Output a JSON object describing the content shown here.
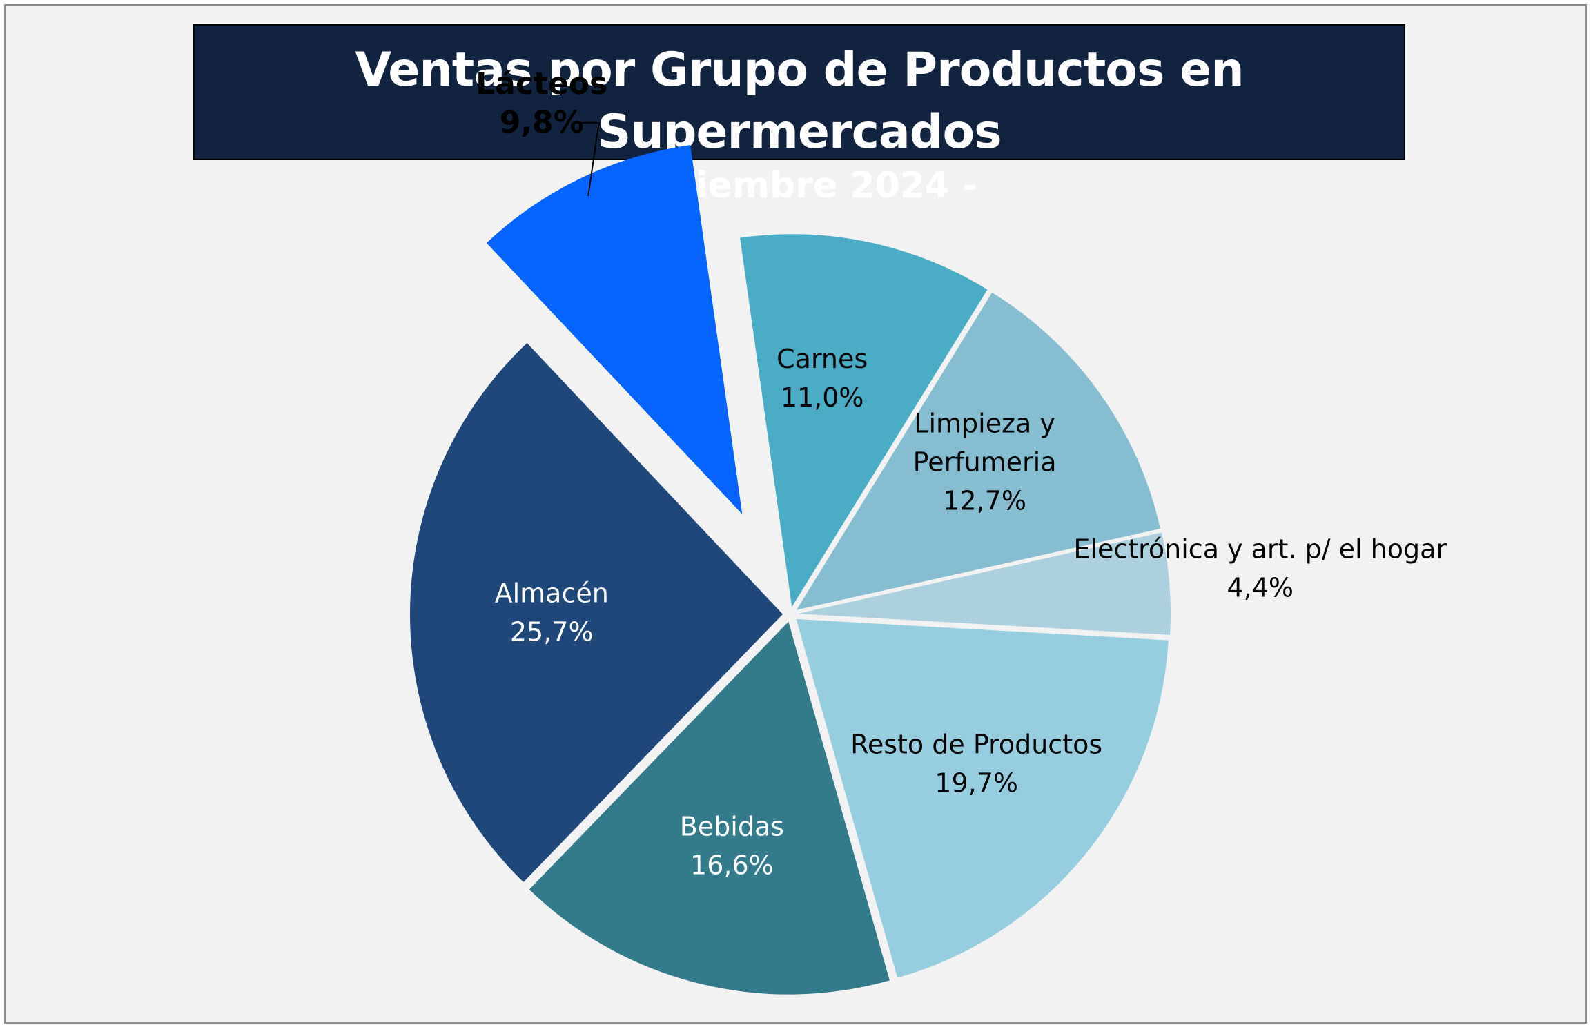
{
  "chart_data": {
    "type": "pie",
    "title": "Ventas por Grupo de Productos en Supermercados",
    "subtitle": "-diciembre 2024 -",
    "slices": [
      {
        "name": "Carnes",
        "value": 11.0,
        "label": "11,0%",
        "color": "#4bacc6",
        "text_color": "#000000"
      },
      {
        "name": "Limpieza y Perfumeria",
        "label_lines": [
          "Limpieza y",
          "Perfumeria"
        ],
        "value": 12.7,
        "label": "12,7%",
        "color": "#86bdd1",
        "text_color": "#000000"
      },
      {
        "name": "Electrónica y art. p/ el hogar",
        "value": 4.4,
        "label": "4,4%",
        "color": "#acd0de",
        "text_color": "#000000"
      },
      {
        "name": "Resto de Productos",
        "value": 19.7,
        "label": "19,7%",
        "color": "#96cddf",
        "text_color": "#000000"
      },
      {
        "name": "Bebidas",
        "value": 16.6,
        "label": "16,6%",
        "color": "#337a8b",
        "text_color": "#ffffff"
      },
      {
        "name": "Almacén",
        "value": 25.7,
        "label": "25,7%",
        "color": "#1f477a",
        "text_color": "#ffffff"
      },
      {
        "name": "Lácteos",
        "value": 9.8,
        "label": "9,8%",
        "color": "#0563ff",
        "text_color": "#000000",
        "highlighted": true
      }
    ],
    "legend": "none",
    "data_labels": "name-and-percent"
  }
}
